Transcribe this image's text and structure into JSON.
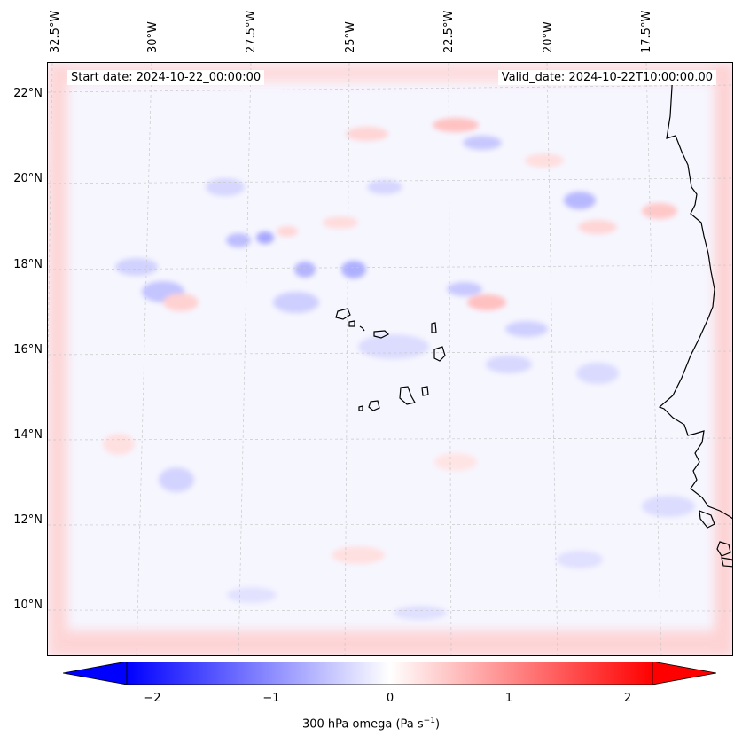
{
  "map": {
    "start_date": "Start date: 2024-10-22_00:00:00",
    "valid_date": "Valid_date: 2024-10-22T10:00:00.00",
    "lon_labels": [
      "32.5°W",
      "30°W",
      "27.5°W",
      "25°W",
      "22.5°W",
      "20°W",
      "17.5°W"
    ],
    "lat_labels": [
      "22°N",
      "20°N",
      "18°N",
      "16°N",
      "14°N",
      "12°N",
      "10°N"
    ],
    "colors": {
      "negative": "#0000ff",
      "zero": "#ffffff",
      "positive": "#ff0000",
      "coast": "#000000"
    }
  },
  "colorbar": {
    "min": -2.5,
    "max": 2.5,
    "ticks": [
      "−2",
      "−1",
      "0",
      "1",
      "2"
    ],
    "tick_values": [
      -2,
      -1,
      0,
      1,
      2
    ],
    "label": "300 hPa omega (Pa s",
    "label_exp": "−1",
    "label_close": ")"
  }
}
